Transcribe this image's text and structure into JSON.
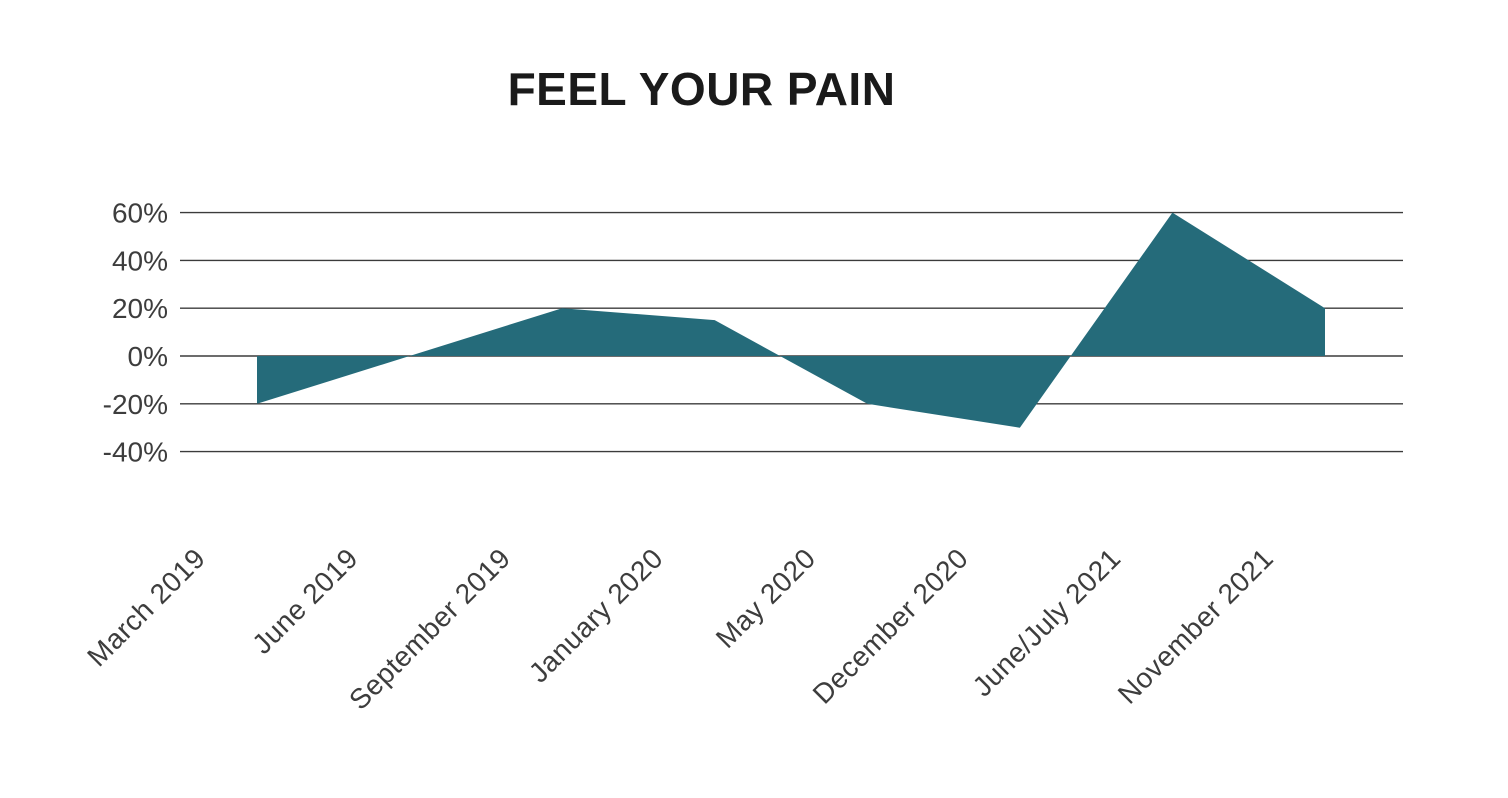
{
  "page": {
    "background": "#ffffff"
  },
  "chart_data": {
    "type": "area",
    "title": "FEEL YOUR PAIN",
    "categories": [
      "March 2019",
      "June 2019",
      "September 2019",
      "January 2020",
      "May 2020",
      "December 2020",
      "June/July 2021",
      "November 2021"
    ],
    "values": [
      -20,
      0,
      20,
      15,
      -20,
      -30,
      60,
      20
    ],
    "value_unit": "%",
    "y_ticks": [
      60,
      40,
      20,
      0,
      -20,
      -40
    ],
    "y_tick_labels": [
      "60%",
      "40%",
      "20%",
      "0%",
      "-20%",
      "-40%"
    ],
    "ylim": [
      -40,
      60
    ],
    "baseline": 0,
    "grid": "horizontal",
    "legend": "none",
    "x_label_rotation_deg": 45,
    "colors": {
      "area_fill": "#256b7a",
      "grid_line": "#3b3b3b",
      "axis_text": "#3d3d3d",
      "title_text": "#1a1a1a"
    }
  }
}
